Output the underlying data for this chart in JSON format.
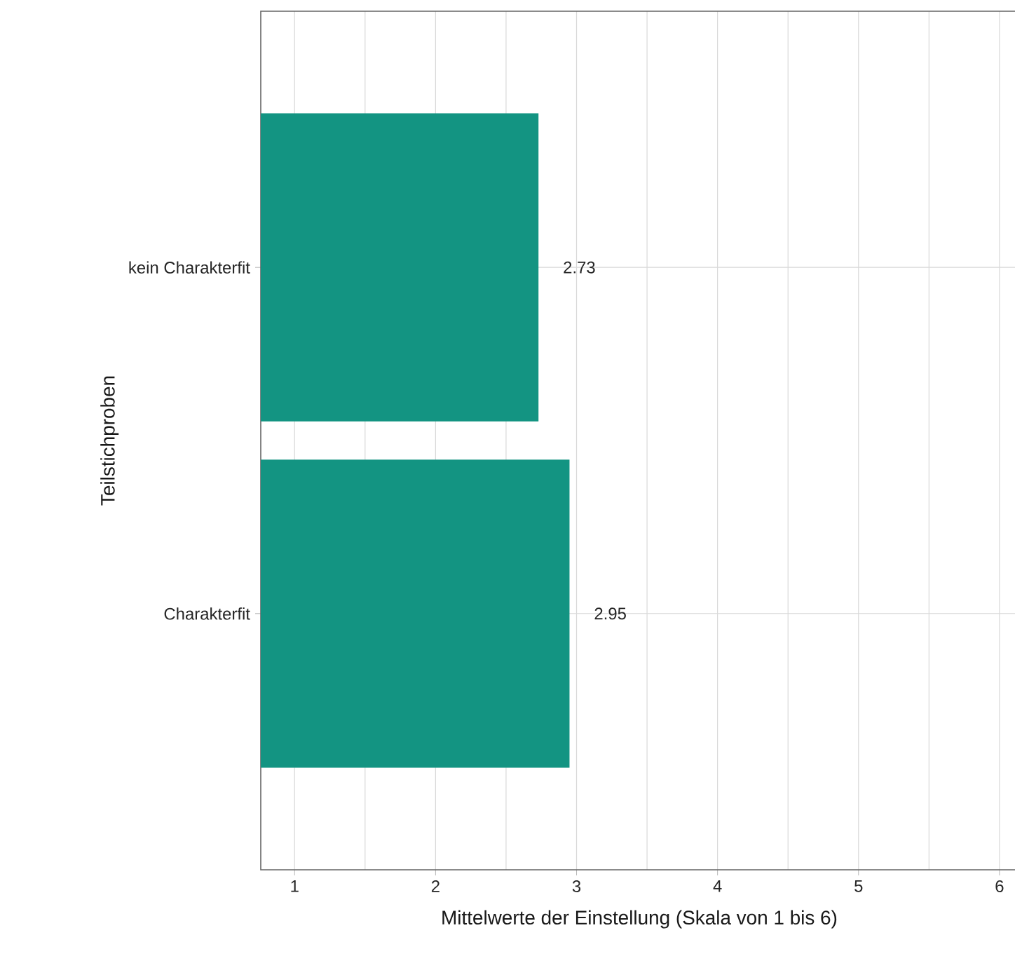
{
  "chart_data": {
    "type": "bar",
    "orientation": "horizontal",
    "xlabel": "Mittelwerte der Einstellung (Skala von 1 bis 6)",
    "ylabel": "Teilstichproben",
    "categories": [
      "kein Charakterfit",
      "Charakterfit"
    ],
    "values": [
      2.73,
      2.95
    ],
    "color": "#139482",
    "xlim": [
      0.76,
      6.13
    ],
    "xticks": [
      1,
      2,
      3,
      4,
      5,
      6
    ],
    "grid": true,
    "data_labels": true
  }
}
